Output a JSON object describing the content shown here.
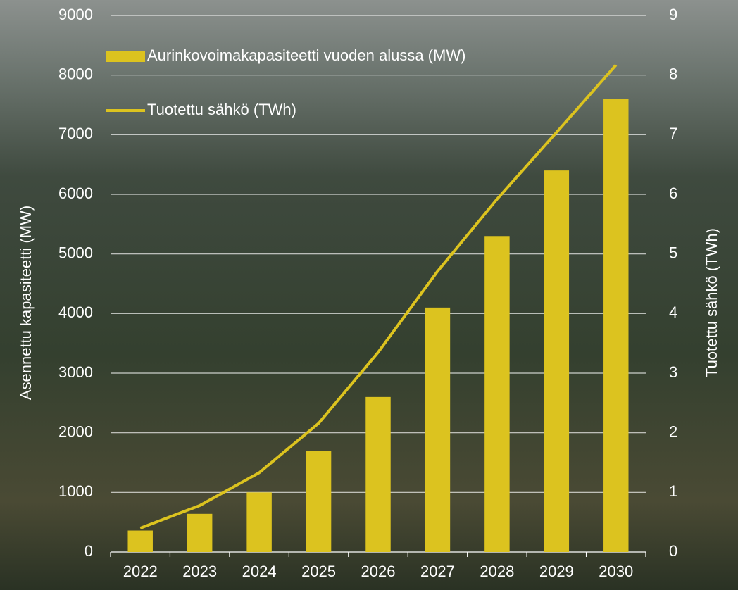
{
  "chart_data": {
    "type": "bar",
    "categories": [
      "2022",
      "2023",
      "2024",
      "2025",
      "2026",
      "2027",
      "2028",
      "2029",
      "2030"
    ],
    "series": [
      {
        "name": "Aurinkovoimakapasiteetti vuoden alussa (MW)",
        "type": "bar",
        "color": "#dcc31f",
        "values": [
          360,
          640,
          1000,
          1700,
          2600,
          4100,
          5300,
          6400,
          7600
        ]
      },
      {
        "name": "Tuotettu sähkö (TWh)",
        "type": "line",
        "axis": "y2",
        "color": "#dcc31f",
        "values": [
          0.4,
          0.78,
          1.33,
          2.16,
          3.35,
          4.71,
          5.92,
          7.04,
          8.17
        ]
      }
    ],
    "y_label": "Asennettu kapasiteetti (MW)",
    "y2_label": "Tuotettu sähkö (TWh)",
    "ylim": [
      0,
      9000
    ],
    "yticks": [
      0,
      1000,
      2000,
      3000,
      4000,
      5000,
      6000,
      7000,
      8000,
      9000
    ],
    "y2lim": [
      0,
      9
    ],
    "y2ticks": [
      0,
      1,
      2,
      3,
      4,
      5,
      6,
      7,
      8,
      9
    ],
    "grid": true,
    "legend": "top-left"
  }
}
